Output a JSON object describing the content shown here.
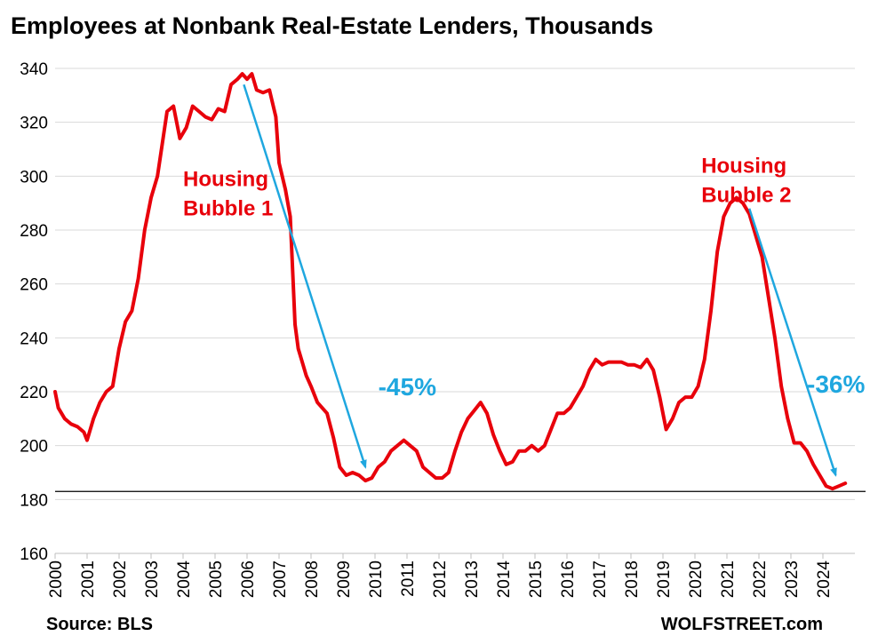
{
  "chart_data": {
    "type": "line",
    "title": "Employees at Nonbank Real-Estate Lenders, Thousands",
    "source": "Source: BLS",
    "credit": "WOLFSTREET.com",
    "xlabel": "",
    "ylabel": "",
    "ylim": [
      160,
      340
    ],
    "xlim": [
      2000,
      2025
    ],
    "y_ticks": [
      160,
      180,
      200,
      220,
      240,
      260,
      280,
      300,
      320,
      340
    ],
    "x_ticks": [
      2000,
      2001,
      2002,
      2003,
      2004,
      2005,
      2006,
      2007,
      2008,
      2009,
      2010,
      2011,
      2012,
      2013,
      2014,
      2015,
      2016,
      2017,
      2018,
      2019,
      2020,
      2021,
      2022,
      2023,
      2024
    ],
    "grid": "horizontal",
    "reference_line": 183,
    "series": [
      {
        "color": "#e8000b",
        "x": [
          2000.0,
          2000.1,
          2000.3,
          2000.5,
          2000.7,
          2000.9,
          2001.0,
          2001.2,
          2001.4,
          2001.6,
          2001.8,
          2002.0,
          2002.2,
          2002.4,
          2002.6,
          2002.8,
          2003.0,
          2003.2,
          2003.35,
          2003.5,
          2003.7,
          2003.9,
          2004.1,
          2004.3,
          2004.5,
          2004.7,
          2004.9,
          2005.1,
          2005.3,
          2005.5,
          2005.7,
          2005.85,
          2006.0,
          2006.15,
          2006.3,
          2006.5,
          2006.7,
          2006.9,
          2007.0,
          2007.2,
          2007.35,
          2007.5,
          2007.6,
          2007.7,
          2007.85,
          2008.0,
          2008.2,
          2008.5,
          2008.7,
          2008.9,
          2009.1,
          2009.3,
          2009.5,
          2009.7,
          2009.9,
          2010.1,
          2010.3,
          2010.5,
          2010.7,
          2010.9,
          2011.1,
          2011.3,
          2011.5,
          2011.7,
          2011.9,
          2012.1,
          2012.3,
          2012.5,
          2012.7,
          2012.9,
          2013.1,
          2013.3,
          2013.5,
          2013.7,
          2013.9,
          2014.1,
          2014.3,
          2014.5,
          2014.7,
          2014.9,
          2015.1,
          2015.3,
          2015.5,
          2015.7,
          2015.9,
          2016.1,
          2016.3,
          2016.5,
          2016.7,
          2016.9,
          2017.1,
          2017.3,
          2017.5,
          2017.7,
          2017.9,
          2018.1,
          2018.3,
          2018.5,
          2018.7,
          2018.9,
          2019.1,
          2019.3,
          2019.5,
          2019.7,
          2019.9,
          2020.1,
          2020.3,
          2020.5,
          2020.7,
          2020.9,
          2021.1,
          2021.3,
          2021.5,
          2021.7,
          2021.9,
          2022.1,
          2022.3,
          2022.5,
          2022.7,
          2022.9,
          2023.1,
          2023.3,
          2023.5,
          2023.7,
          2023.9,
          2024.1,
          2024.3,
          2024.5,
          2024.7
        ],
        "values": [
          220,
          214,
          210,
          208,
          207,
          205,
          202,
          210,
          216,
          220,
          222,
          236,
          246,
          250,
          262,
          280,
          292,
          300,
          312,
          324,
          326,
          314,
          318,
          326,
          324,
          322,
          321,
          325,
          324,
          334,
          336,
          338,
          336,
          338,
          332,
          331,
          332,
          322,
          305,
          295,
          285,
          245,
          236,
          232,
          226,
          222,
          216,
          212,
          203,
          192,
          189,
          190,
          189,
          187,
          188,
          192,
          194,
          198,
          200,
          202,
          200,
          198,
          192,
          190,
          188,
          188,
          190,
          198,
          205,
          210,
          213,
          216,
          212,
          204,
          198,
          193,
          194,
          198,
          198,
          200,
          198,
          200,
          206,
          212,
          212,
          214,
          218,
          222,
          228,
          232,
          230,
          231,
          231,
          231,
          230,
          230,
          229,
          232,
          228,
          218,
          206,
          210,
          216,
          218,
          218,
          222,
          232,
          250,
          272,
          285,
          290,
          292,
          290,
          286,
          278,
          270,
          255,
          240,
          222,
          210,
          201,
          201,
          198,
          193,
          189,
          185,
          184,
          185,
          186
        ]
      }
    ],
    "annotations": [
      {
        "text_line1": "Housing",
        "text_line2": "Bubble 1",
        "x": 2004.0,
        "y": 295,
        "color": "#e8000b"
      },
      {
        "text_line1": "Housing",
        "text_line2": "Bubble 2",
        "x": 2020.2,
        "y": 300,
        "color": "#e8000b"
      },
      {
        "text": "-45%",
        "x": 2010.1,
        "y": 222,
        "color": "#1fa7df"
      },
      {
        "text": "-36%",
        "x": 2023.5,
        "y": 223,
        "color": "#1fa7df"
      }
    ],
    "arrows": [
      {
        "x1": 2005.9,
        "y1": 334,
        "x2": 2009.7,
        "y2": 192,
        "color": "#1fa7df"
      },
      {
        "x1": 2021.7,
        "y1": 288,
        "x2": 2024.4,
        "y2": 189,
        "color": "#1fa7df"
      }
    ]
  }
}
